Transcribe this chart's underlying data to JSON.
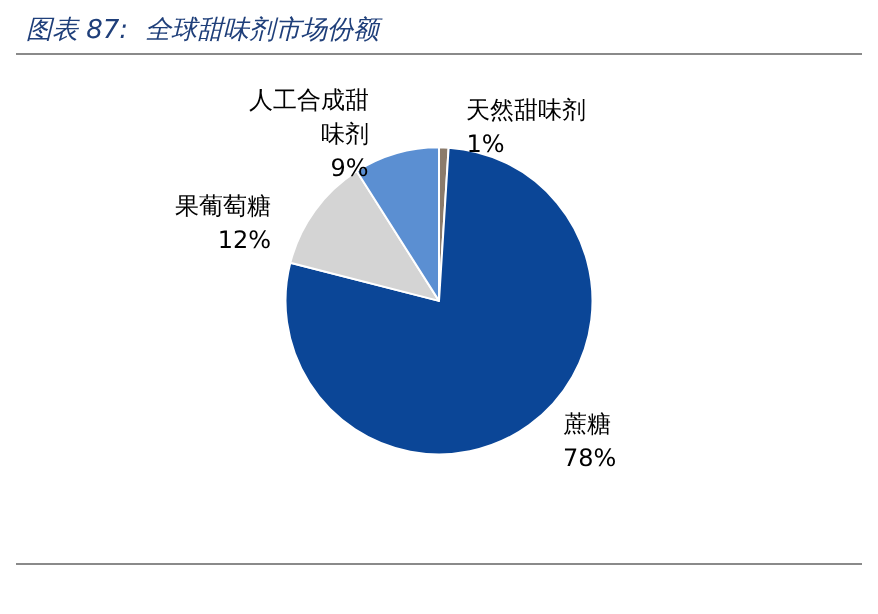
{
  "chart_data": {
    "type": "pie",
    "title": "图表 87:  全球甜味剂市场份额",
    "categories": [
      "天然甜味剂",
      "蔗糖",
      "果葡萄糖",
      "人工合成甜味剂"
    ],
    "values": [
      1,
      78,
      12,
      9
    ],
    "value_labels": [
      "1%",
      "78%",
      "12%",
      "9%"
    ],
    "colors": [
      "#8b7b6b",
      "#0b4697",
      "#d4d4d4",
      "#5b8fd2"
    ],
    "legend": false
  }
}
